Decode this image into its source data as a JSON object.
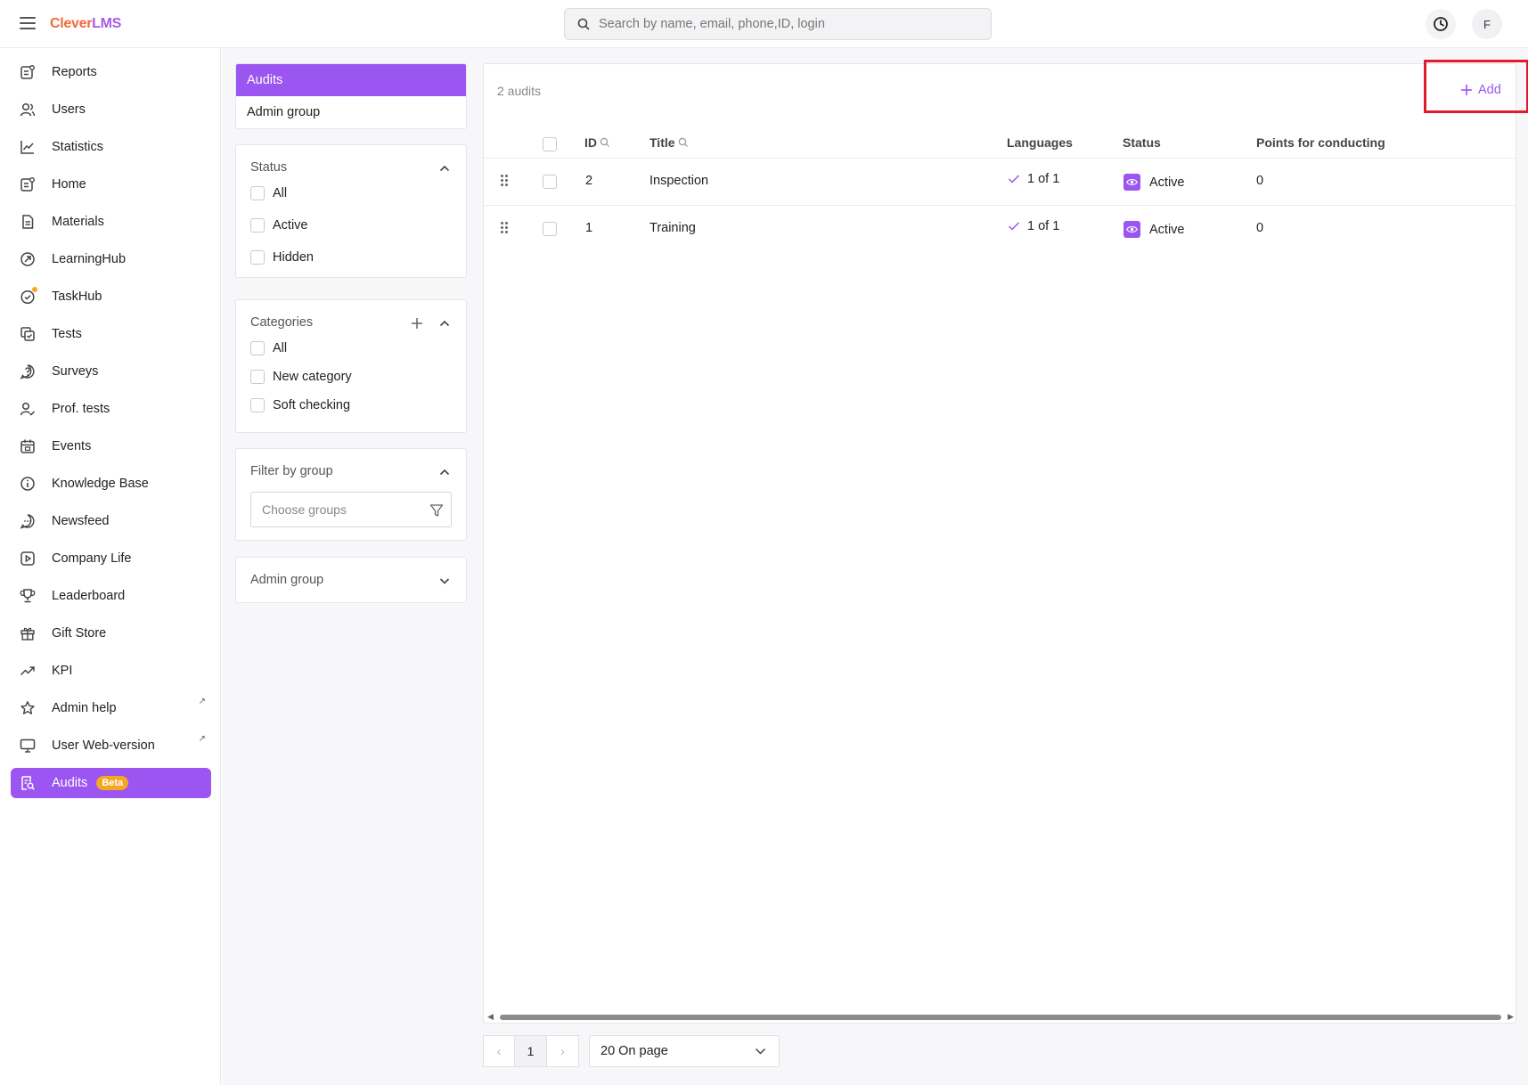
{
  "header": {
    "logo_part1": "Clever",
    "logo_part2": "LMS",
    "search_placeholder": "Search by name, email, phone,ID, login",
    "avatar_initial": "F"
  },
  "sidebar": {
    "items": [
      {
        "label": "Reports",
        "icon": "reports-icon"
      },
      {
        "label": "Users",
        "icon": "users-icon"
      },
      {
        "label": "Statistics",
        "icon": "statistics-icon"
      },
      {
        "label": "Home",
        "icon": "home-icon"
      },
      {
        "label": "Materials",
        "icon": "materials-icon"
      },
      {
        "label": "LearningHub",
        "icon": "learninghub-icon"
      },
      {
        "label": "TaskHub",
        "icon": "taskhub-icon"
      },
      {
        "label": "Tests",
        "icon": "tests-icon"
      },
      {
        "label": "Surveys",
        "icon": "surveys-icon"
      },
      {
        "label": "Prof. tests",
        "icon": "prof-tests-icon"
      },
      {
        "label": "Events",
        "icon": "events-icon"
      },
      {
        "label": "Knowledge Base",
        "icon": "knowledge-base-icon"
      },
      {
        "label": "Newsfeed",
        "icon": "newsfeed-icon"
      },
      {
        "label": "Company Life",
        "icon": "company-life-icon"
      },
      {
        "label": "Leaderboard",
        "icon": "leaderboard-icon"
      },
      {
        "label": "Gift Store",
        "icon": "gift-store-icon"
      },
      {
        "label": "KPI",
        "icon": "kpi-icon"
      },
      {
        "label": "Admin help",
        "icon": "admin-help-icon",
        "external": "↗"
      },
      {
        "label": "User Web-version",
        "icon": "user-web-version-icon",
        "external": "↗"
      },
      {
        "label": "Audits",
        "icon": "audits-icon",
        "badge": "Beta",
        "active": true
      }
    ]
  },
  "tabs": [
    {
      "label": "Audits",
      "active": true
    },
    {
      "label": "Admin group",
      "active": false
    }
  ],
  "filters": {
    "status": {
      "title": "Status",
      "options": [
        "All",
        "Active",
        "Hidden"
      ]
    },
    "categories": {
      "title": "Categories",
      "options": [
        "All",
        "New category",
        "Soft checking"
      ]
    },
    "group": {
      "title": "Filter by group",
      "placeholder": "Choose groups"
    },
    "admin_group": {
      "title": "Admin group"
    }
  },
  "table": {
    "count_label": "2 audits",
    "add_label": "Add",
    "columns": [
      "ID",
      "Title",
      "Languages",
      "Status",
      "Points for conducting"
    ],
    "rows": [
      {
        "id": "2",
        "title": "Inspection",
        "languages": "1 of 1",
        "status": "Active",
        "points": "0"
      },
      {
        "id": "1",
        "title": "Training",
        "languages": "1 of 1",
        "status": "Active",
        "points": "0"
      }
    ]
  },
  "pagination": {
    "prev": "‹",
    "current_page": "1",
    "next": "›",
    "per_page": "20 On page"
  },
  "colors": {
    "accent": "#9b55f0",
    "highlight_frame": "#e01b2e",
    "beta_badge": "#f5a623"
  }
}
